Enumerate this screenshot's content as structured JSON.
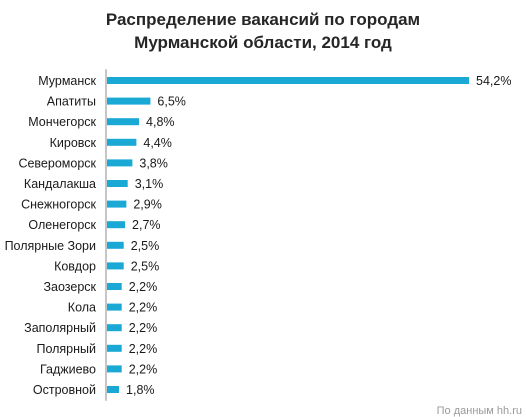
{
  "chart_data": {
    "type": "bar",
    "orientation": "horizontal",
    "title": "Распределение вакансий по городам Мурманской области, 2014 год",
    "title_lines": [
      "Распределение вакансий по городам",
      "Мурманской области, 2014 год"
    ],
    "categories": [
      "Мурманск",
      "Апатиты",
      "Мончегорск",
      "Кировск",
      "Североморск",
      "Кандалакша",
      "Снежногорск",
      "Оленегорск",
      "Полярные Зори",
      "Ковдор",
      "Заозерск",
      "Кола",
      "Заполярный",
      "Полярный",
      "Гаджиево",
      "Островной"
    ],
    "values": [
      54.2,
      6.5,
      4.8,
      4.4,
      3.8,
      3.1,
      2.9,
      2.7,
      2.5,
      2.5,
      2.2,
      2.2,
      2.2,
      2.2,
      2.2,
      1.8
    ],
    "value_labels": [
      "54,2%",
      "6,5%",
      "4,8%",
      "4,4%",
      "3,8%",
      "3,1%",
      "2,9%",
      "2,7%",
      "2,5%",
      "2,5%",
      "2,2%",
      "2,2%",
      "2,2%",
      "2,2%",
      "2,2%",
      "1,8%"
    ],
    "unit": "%",
    "xlim": [
      0,
      54.2
    ],
    "grid": false,
    "legend": "none",
    "bar_color": "#1aa8d4",
    "axis_color": "#8c8c8c"
  },
  "source_note": "По данным hh.ru"
}
